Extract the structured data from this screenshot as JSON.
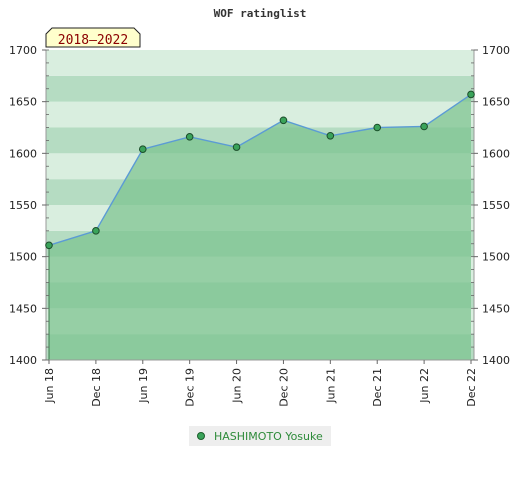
{
  "chart_data": {
    "type": "area",
    "title": "WOF ratinglist",
    "badge": "2018–2022",
    "xlabel": "",
    "ylabel": "",
    "x_categories": [
      "Jun 18",
      "Dec 18",
      "Jun 19",
      "Dec 19",
      "Jun 20",
      "Dec 20",
      "Jun 21",
      "Dec 21",
      "Jun 22",
      "Dec 22"
    ],
    "y_ticks": [
      1400,
      1450,
      1500,
      1550,
      1600,
      1650,
      1700
    ],
    "ylim": [
      1400,
      1700
    ],
    "series": [
      {
        "name": "HASHIMOTO Yosuke",
        "values": [
          1511,
          1525,
          1604,
          1616,
          1606,
          1632,
          1617,
          1625,
          1626,
          1657
        ]
      }
    ],
    "grid": true,
    "legend_position": "bottom",
    "colors": {
      "line": "#5b9bd5",
      "area": "#7cc48f",
      "marker": "#3aa35a",
      "band_dark": "#b5dcc2",
      "band_light": "#d9eedf",
      "badge_bg": "#ffffcc",
      "legend_bg": "#eeeeee"
    }
  }
}
